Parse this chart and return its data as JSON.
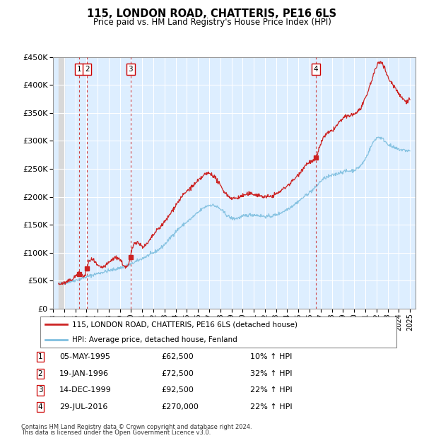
{
  "title": "115, LONDON ROAD, CHATTERIS, PE16 6LS",
  "subtitle": "Price paid vs. HM Land Registry's House Price Index (HPI)",
  "legend_line1": "115, LONDON ROAD, CHATTERIS, PE16 6LS (detached house)",
  "legend_line2": "HPI: Average price, detached house, Fenland",
  "footnote1": "Contains HM Land Registry data © Crown copyright and database right 2024.",
  "footnote2": "This data is licensed under the Open Government Licence v3.0.",
  "transactions": [
    {
      "id": 1,
      "date": "05-MAY-1995",
      "year": 1995.37,
      "price": 62500,
      "hpi_pct": "10% ↑ HPI"
    },
    {
      "id": 2,
      "date": "19-JAN-1996",
      "year": 1996.05,
      "price": 72500,
      "hpi_pct": "32% ↑ HPI"
    },
    {
      "id": 3,
      "date": "14-DEC-1999",
      "year": 1999.95,
      "price": 92500,
      "hpi_pct": "22% ↑ HPI"
    },
    {
      "id": 4,
      "date": "29-JUL-2016",
      "year": 2016.58,
      "price": 270000,
      "hpi_pct": "22% ↑ HPI"
    }
  ],
  "hpi_color": "#7fbfdf",
  "price_color": "#cc2222",
  "dashed_color": "#cc2222",
  "background_plot": "#ddeeff",
  "ylim": [
    0,
    450000
  ],
  "yticks": [
    0,
    50000,
    100000,
    150000,
    200000,
    250000,
    300000,
    350000,
    400000,
    450000
  ],
  "xmin": 1993.5,
  "xmax": 2025.5,
  "hpi_anchors_x": [
    1993.5,
    1994,
    1995,
    1995.37,
    1996,
    1997,
    1998,
    1999,
    2000,
    2001,
    2002,
    2003,
    2004,
    2005,
    2006,
    2007,
    2008,
    2009,
    2010,
    2011,
    2012,
    2013,
    2014,
    2015,
    2016,
    2016.58,
    2017,
    2018,
    2019,
    2020,
    2021,
    2022,
    2023,
    2024,
    2025
  ],
  "hpi_anchors_y": [
    44000,
    46000,
    51000,
    53000,
    57000,
    63000,
    68000,
    73000,
    80000,
    90000,
    100000,
    115000,
    138000,
    155000,
    172000,
    185000,
    178000,
    162000,
    165000,
    168000,
    165000,
    168000,
    178000,
    192000,
    208000,
    218000,
    228000,
    238000,
    245000,
    248000,
    268000,
    305000,
    295000,
    285000,
    282000
  ],
  "price_anchors_x": [
    1993.5,
    1994,
    1995,
    1995.37,
    1996,
    1996.05,
    1997,
    1998,
    1999,
    1999.95,
    2000,
    2001,
    2002,
    2003,
    2004,
    2005,
    2006,
    2006.5,
    2007,
    2007.5,
    2008,
    2009,
    2010,
    2011,
    2012,
    2013,
    2014,
    2015,
    2016,
    2016.58,
    2017,
    2018,
    2019,
    2020,
    2021,
    2022,
    2022.5,
    2023,
    2023.5,
    2024,
    2025
  ],
  "price_anchors_y": [
    44000,
    46000,
    58000,
    62500,
    68000,
    72500,
    77000,
    82000,
    88000,
    92500,
    98000,
    112000,
    132000,
    155000,
    185000,
    210000,
    228000,
    238000,
    242000,
    235000,
    220000,
    198000,
    202000,
    205000,
    200000,
    205000,
    220000,
    240000,
    262000,
    270000,
    295000,
    318000,
    340000,
    348000,
    375000,
    432000,
    440000,
    415000,
    400000,
    385000,
    375000
  ]
}
